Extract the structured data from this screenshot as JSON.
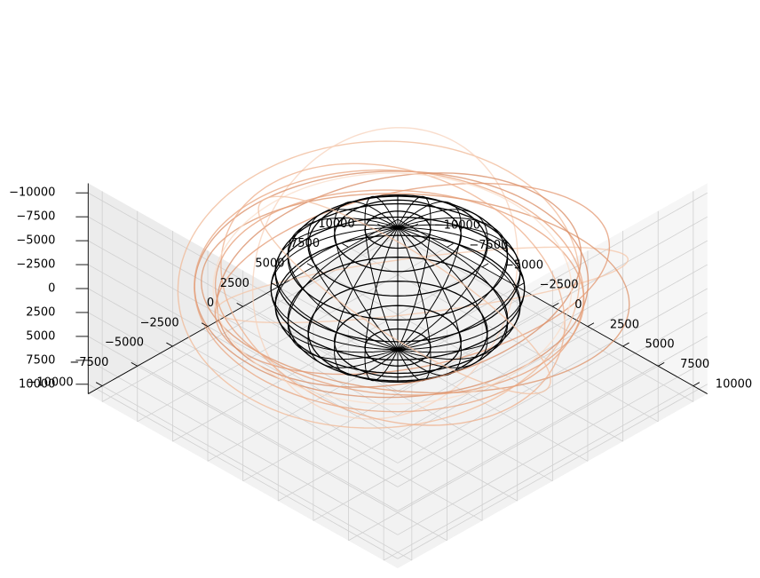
{
  "chart_data": {
    "type": "line3d",
    "title": "",
    "axes": {
      "x": {
        "range": [
          -11000,
          11000
        ],
        "ticks": [
          -10000,
          -7500,
          -5000,
          -2500,
          0,
          2500,
          5000,
          7500,
          10000
        ],
        "tick_labels": [
          "−10000",
          "−7500",
          "−5000",
          "−2500",
          "0",
          "2500",
          "5000",
          "7500",
          "10000"
        ]
      },
      "y": {
        "range": [
          -11000,
          11000
        ],
        "ticks": [
          -10000,
          -7500,
          -5000,
          -2500,
          0,
          2500,
          5000,
          7500,
          10000
        ],
        "tick_labels": [
          "−10000",
          "−7500",
          "−5000",
          "−2500",
          "0",
          "2500",
          "5000",
          "7500",
          "10000"
        ]
      },
      "z": {
        "range": [
          -11000,
          11000
        ],
        "ticks": [
          -10000,
          -7500,
          -5000,
          -2500,
          0,
          2500,
          5000,
          7500,
          10000
        ],
        "tick_labels": [
          "−10000",
          "−7500",
          "−5000",
          "−2500",
          "0",
          "2500",
          "5000",
          "7500",
          "10000"
        ]
      }
    },
    "grid": true,
    "view": {
      "elevation_deg": -45,
      "azimuth_deg": 45
    },
    "sphere": {
      "radius": 6371,
      "style": "wireframe",
      "color": "#000000",
      "lat_lines": 12,
      "lon_lines": 24
    },
    "orbits": [
      {
        "semi_major": 9800,
        "eccentricity": 0.05,
        "inclination_deg": 8,
        "raan_deg": 20,
        "color": "#e8a37c"
      },
      {
        "semi_major": 10200,
        "eccentricity": 0.1,
        "inclination_deg": 25,
        "raan_deg": 65,
        "color": "#f0b896"
      },
      {
        "semi_major": 9500,
        "eccentricity": 0.08,
        "inclination_deg": 15,
        "raan_deg": 140,
        "color": "#d88a62"
      },
      {
        "semi_major": 10500,
        "eccentricity": 0.12,
        "inclination_deg": 40,
        "raan_deg": 210,
        "color": "#f4c6a8"
      },
      {
        "semi_major": 9300,
        "eccentricity": 0.04,
        "inclination_deg": 5,
        "raan_deg": 300,
        "color": "#e69c74"
      },
      {
        "semi_major": 10000,
        "eccentricity": 0.15,
        "inclination_deg": 55,
        "raan_deg": 110,
        "color": "#f7d2bb"
      },
      {
        "semi_major": 9700,
        "eccentricity": 0.06,
        "inclination_deg": 30,
        "raan_deg": 340,
        "color": "#eeae8a"
      },
      {
        "semi_major": 10800,
        "eccentricity": 0.09,
        "inclination_deg": 12,
        "raan_deg": 250,
        "color": "#dc9168"
      },
      {
        "semi_major": 9000,
        "eccentricity": 0.03,
        "inclination_deg": 70,
        "raan_deg": 45,
        "color": "#f9ddca"
      },
      {
        "semi_major": 10300,
        "eccentricity": 0.11,
        "inclination_deg": 20,
        "raan_deg": 175,
        "color": "#e39770"
      },
      {
        "semi_major": 9600,
        "eccentricity": 0.07,
        "inclination_deg": 48,
        "raan_deg": 285,
        "color": "#f2bf9f"
      },
      {
        "semi_major": 9900,
        "eccentricity": 0.05,
        "inclination_deg": 2,
        "raan_deg": 95,
        "color": "#d98c64"
      }
    ]
  }
}
